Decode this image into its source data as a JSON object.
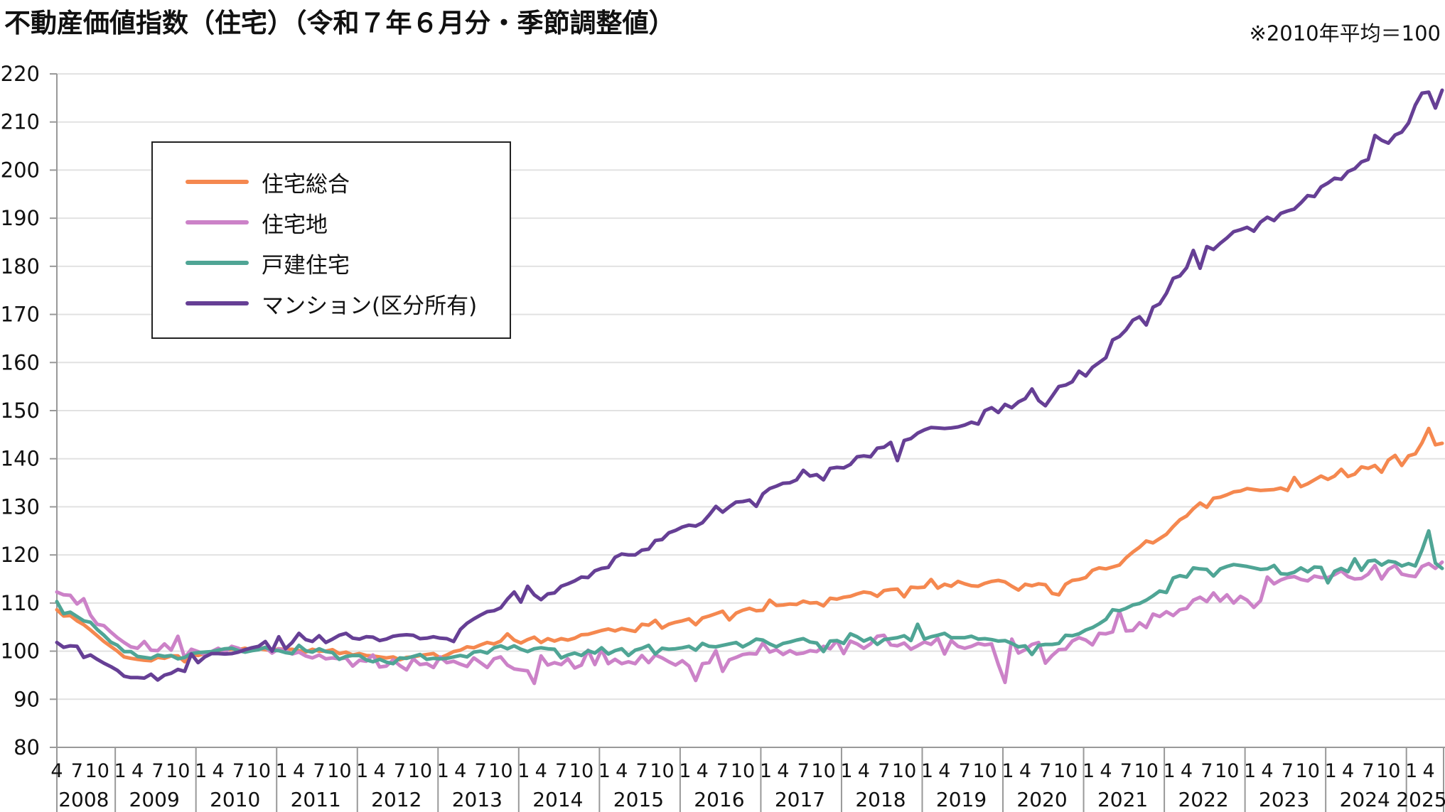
{
  "chart_data": {
    "type": "line",
    "title": "不動産価値指数（住宅）（令和７年６月分・季節調整値）",
    "note": "※2010年平均＝100",
    "xlabel": "",
    "ylabel": "",
    "ylim": [
      80,
      220
    ],
    "yticks": [
      80,
      90,
      100,
      110,
      120,
      130,
      140,
      150,
      160,
      170,
      180,
      190,
      200,
      210,
      220
    ],
    "grid": true,
    "legend_position": "top-left",
    "x_start": "2008-04",
    "x_end": "2025-06",
    "month_ticks": [
      "1",
      "4",
      "7",
      "10"
    ],
    "years": [
      "2008",
      "2009",
      "2010",
      "2011",
      "2012",
      "2013",
      "2014",
      "2015",
      "2016",
      "2017",
      "2018",
      "2019",
      "2020",
      "2021",
      "2022",
      "2023",
      "2024",
      "2025"
    ],
    "series": [
      {
        "name": "住宅総合",
        "color": "#F5884F",
        "values": [
          108.6,
          107.3,
          107.4,
          106.3,
          105.5,
          104.4,
          103.2,
          102,
          101,
          100,
          98.8,
          98.5,
          98.3,
          98.1,
          98,
          98.7,
          98.5,
          99,
          99,
          97.8,
          99.3,
          99.1,
          99.5,
          99.8,
          100,
          100.2,
          100.4,
          100.3,
          100.6,
          100.2,
          100.5,
          100.3,
          100.1,
          100.5,
          100.3,
          100.4,
          100.1,
          99.8,
          100.4,
          100,
          100,
          100.3,
          99.5,
          99.8,
          99.2,
          99.5,
          99.1,
          99,
          98.8,
          98.6,
          98.8,
          98.2,
          98.7,
          98.8,
          99.1,
          99.3,
          99.5,
          98.6,
          99.2,
          99.9,
          100.2,
          100.9,
          100.7,
          101.3,
          101.8,
          101.5,
          102.1,
          103.6,
          102.3,
          101.7,
          102.4,
          102.9,
          101.8,
          102.6,
          102.1,
          102.6,
          102.3,
          102.7,
          103.4,
          103.5,
          103.9,
          104.3,
          104.6,
          104.2,
          104.7,
          104.4,
          104.1,
          105.6,
          105.4,
          106.4,
          104.8,
          105.6,
          106,
          106.3,
          106.7,
          105.5,
          106.9,
          107.3,
          107.8,
          108.3,
          106.5,
          107.9,
          108.5,
          108.9,
          108.4,
          108.5,
          110.6,
          109.5,
          109.6,
          109.8,
          109.7,
          110.4,
          110,
          110.1,
          109.4,
          111,
          110.8,
          111.2,
          111.4,
          111.9,
          112.3,
          112.1,
          111.4,
          112.6,
          112.8,
          112.9,
          111.3,
          113.3,
          113.2,
          113.3,
          114.9,
          113.1,
          113.9,
          113.5,
          114.5,
          114,
          113.6,
          113.5,
          114.1,
          114.5,
          114.7,
          114.4,
          113.5,
          112.7,
          113.9,
          113.6,
          114,
          113.8,
          112,
          111.7,
          113.9,
          114.7,
          114.9,
          115.3,
          116.8,
          117.3,
          117.1,
          117.5,
          117.9,
          119.4,
          120.6,
          121.6,
          122.9,
          122.5,
          123.4,
          124.3,
          125.9,
          127.3,
          128.1,
          129.6,
          130.8,
          129.9,
          131.8,
          132,
          132.5,
          133.1,
          133.3,
          133.8,
          133.6,
          133.4,
          133.5,
          133.6,
          133.9,
          133.4,
          136.1,
          134.2,
          134.8,
          135.6,
          136.4,
          135.7,
          136.4,
          137.8,
          136.3,
          136.8,
          138.3,
          138,
          138.6,
          137.2,
          139.7,
          140.7,
          138.6,
          140.6,
          141,
          143.3,
          146.3,
          142.9,
          143.2
        ]
      },
      {
        "name": "住宅地",
        "color": "#CC82C8",
        "values": [
          112.3,
          111.7,
          111.6,
          109.8,
          110.9,
          107.5,
          105.6,
          105.3,
          104,
          102.8,
          101.8,
          100.9,
          100.6,
          102,
          100.2,
          100.1,
          101.5,
          100.2,
          103.1,
          98.6,
          100.4,
          99.9,
          99.3,
          99.9,
          100.6,
          99.8,
          101,
          100.6,
          99.8,
          100.2,
          100.4,
          100.8,
          99.6,
          100.5,
          100,
          99.4,
          99.8,
          99,
          98.6,
          99.2,
          98.4,
          98.6,
          98.4,
          98.6,
          96.9,
          98.1,
          97.9,
          99.2,
          96.7,
          96.9,
          98.2,
          97,
          96.1,
          98.4,
          97.2,
          97.4,
          96.6,
          98.8,
          97.6,
          97.9,
          97.3,
          96.8,
          98.6,
          97.6,
          96.6,
          98.4,
          98.8,
          97.1,
          96.3,
          96.1,
          95.9,
          93.3,
          99,
          97.1,
          97.6,
          97.2,
          98.4,
          96.5,
          97.1,
          100.2,
          97.2,
          100.3,
          97.4,
          98.3,
          97.4,
          97.8,
          97.4,
          99.1,
          97.6,
          99.2,
          98.6,
          97.8,
          97.1,
          98,
          96.9,
          93.9,
          97.4,
          97.6,
          100.1,
          95.8,
          98.2,
          98.7,
          99.3,
          99.5,
          99.4,
          101.7,
          99.8,
          100.3,
          99.3,
          100.1,
          99.4,
          99.6,
          100.1,
          99.9,
          101,
          100.5,
          102.2,
          99.5,
          102.1,
          101.5,
          100.6,
          101.5,
          103.1,
          103.3,
          101.3,
          101.1,
          101.7,
          100.4,
          101.1,
          101.9,
          101.4,
          102.7,
          99.4,
          102.2,
          101,
          100.6,
          101,
          101.6,
          101.3,
          101.5,
          97.2,
          93.5,
          102.5,
          99.6,
          100.3,
          101.4,
          101.8,
          97.5,
          99.1,
          100.3,
          100.4,
          102.1,
          102.8,
          102.3,
          101.3,
          103.7,
          103.6,
          104,
          108.3,
          104.2,
          104.3,
          105.9,
          104.9,
          107.7,
          107.2,
          108.2,
          107.4,
          108.6,
          108.9,
          110.6,
          111.2,
          110.3,
          112.1,
          110.4,
          111.7,
          110,
          111.4,
          110.6,
          109.1,
          110.5,
          115.4,
          114,
          114.8,
          115.3,
          115.5,
          114.9,
          114.6,
          115.6,
          115.3,
          115.3,
          115.9,
          116.7,
          115.5,
          115,
          115.1,
          116,
          117.8,
          115,
          117,
          117.8,
          116,
          115.7,
          115.5,
          117.6,
          118.2,
          117.2,
          118.5
        ]
      },
      {
        "name": "戸建住宅",
        "color": "#4FA595",
        "values": [
          110.3,
          107.8,
          108.1,
          107.2,
          106.3,
          106,
          104.5,
          103.3,
          101.9,
          101.2,
          99.9,
          99.9,
          98.9,
          98.7,
          98.5,
          99.2,
          98.9,
          99.1,
          98.4,
          98.7,
          99.5,
          99.7,
          99.8,
          99.9,
          100.2,
          100.5,
          100.6,
          100.1,
          99.8,
          100.1,
          100.3,
          100.8,
          100.2,
          100.1,
          99.7,
          99.5,
          101.2,
          100.1,
          99.8,
          100.5,
          99.9,
          99.7,
          98.3,
          98.9,
          99.1,
          99.1,
          98.2,
          97.8,
          98.3,
          97.7,
          97.4,
          98.6,
          98.5,
          98.9,
          99.3,
          98.3,
          98.5,
          98.4,
          98.5,
          98.8,
          99.1,
          98.8,
          99.8,
          100,
          99.6,
          100.7,
          101.1,
          100.5,
          101.1,
          100.4,
          99.9,
          100.5,
          100.7,
          100.5,
          100.4,
          98.6,
          99.2,
          99.6,
          99.1,
          100.1,
          99.6,
          100.7,
          99.4,
          100.1,
          100.5,
          99.1,
          100.2,
          100.6,
          101.2,
          99.4,
          100.6,
          100.4,
          100.5,
          100.7,
          101,
          100.2,
          101.6,
          101,
          100.9,
          101.2,
          101.5,
          101.8,
          100.9,
          101.6,
          102.5,
          102.3,
          101.5,
          100.9,
          101.6,
          101.9,
          102.3,
          102.6,
          101.9,
          101.7,
          99.9,
          102.1,
          102.2,
          101.6,
          103.6,
          103,
          102.1,
          102.7,
          101.4,
          102.4,
          102.6,
          102.8,
          103.2,
          102.2,
          105.6,
          102.5,
          103,
          103.3,
          103.7,
          102.8,
          102.8,
          102.8,
          103.1,
          102.5,
          102.6,
          102.4,
          102.1,
          102.2,
          101.6,
          100.9,
          101.1,
          99.3,
          101.2,
          101.4,
          101.4,
          101.6,
          103.3,
          103.2,
          103.6,
          104.4,
          104.9,
          105.7,
          106.6,
          108.6,
          108.4,
          108.9,
          109.6,
          109.9,
          110.6,
          111.5,
          112.5,
          112.2,
          115.2,
          115.7,
          115.4,
          117.3,
          117.1,
          117,
          115.6,
          117.1,
          117.6,
          118,
          117.8,
          117.6,
          117.3,
          117,
          117.1,
          117.8,
          116.1,
          116,
          116.4,
          117.3,
          116.5,
          117.5,
          117.4,
          114.2,
          116.6,
          117.2,
          116.5,
          119.2,
          116.8,
          118.7,
          118.9,
          117.9,
          118.7,
          118.5,
          117.7,
          118.2,
          117.7,
          121,
          125,
          118.3,
          117.2
        ]
      },
      {
        "name": "マンション(区分所有)",
        "color": "#663F95",
        "values": [
          101.8,
          100.8,
          101.1,
          101,
          98.7,
          99.2,
          98.3,
          97.5,
          96.8,
          96,
          94.8,
          94.5,
          94.5,
          94.4,
          95.2,
          94,
          95,
          95.4,
          96.2,
          95.8,
          99.4,
          97.6,
          98.8,
          99.5,
          99.5,
          99.4,
          99.5,
          99.8,
          100.3,
          100.7,
          101,
          102,
          100,
          103,
          100.5,
          101.8,
          103.7,
          102.4,
          102,
          103.2,
          101.8,
          102.5,
          103.3,
          103.7,
          102.7,
          102.5,
          103,
          102.9,
          102.2,
          102.5,
          103.1,
          103.3,
          103.4,
          103.3,
          102.6,
          102.7,
          103,
          102.7,
          102.6,
          102,
          104.5,
          105.8,
          106.7,
          107.5,
          108.2,
          108.4,
          109,
          110.8,
          112.3,
          110.2,
          113.5,
          111.7,
          110.7,
          111.9,
          112.1,
          113.5,
          114,
          114.6,
          115.4,
          115.3,
          116.7,
          117.2,
          117.4,
          119.5,
          120.2,
          120,
          120,
          121,
          121.2,
          123,
          123.2,
          124.6,
          125.1,
          125.8,
          126.2,
          126,
          126.7,
          128.3,
          130.1,
          128.9,
          130,
          131,
          131.1,
          131.4,
          130.1,
          132.7,
          133.8,
          134.3,
          134.9,
          135,
          135.6,
          137.6,
          136.4,
          136.7,
          135.6,
          138,
          138.2,
          138.1,
          138.8,
          140.4,
          140.6,
          140.4,
          142.2,
          142.4,
          143.4,
          139.6,
          143.8,
          144.2,
          145.3,
          146,
          146.5,
          146.4,
          146.3,
          146.4,
          146.6,
          147,
          147.6,
          147.2,
          150,
          150.6,
          149.6,
          151.3,
          150.6,
          151.8,
          152.5,
          154.5,
          152.1,
          151,
          153,
          155,
          155.3,
          156,
          158.2,
          157.2,
          159,
          160,
          161,
          164.7,
          165.4,
          166.8,
          168.8,
          169.5,
          167.8,
          171.5,
          172.2,
          174.4,
          177.5,
          178,
          179.7,
          183.3,
          179.6,
          184.1,
          183.5,
          184.8,
          185.9,
          187.2,
          187.6,
          188.1,
          187.3,
          189.2,
          190.2,
          189.5,
          191,
          191.5,
          191.9,
          193.2,
          194.7,
          194.5,
          196.5,
          197.3,
          198.3,
          198.1,
          199.7,
          200.3,
          201.7,
          202.2,
          207.2,
          206.2,
          205.6,
          207.3,
          207.9,
          209.8,
          213.5,
          216,
          216.2,
          212.9,
          216.6
        ]
      }
    ]
  }
}
